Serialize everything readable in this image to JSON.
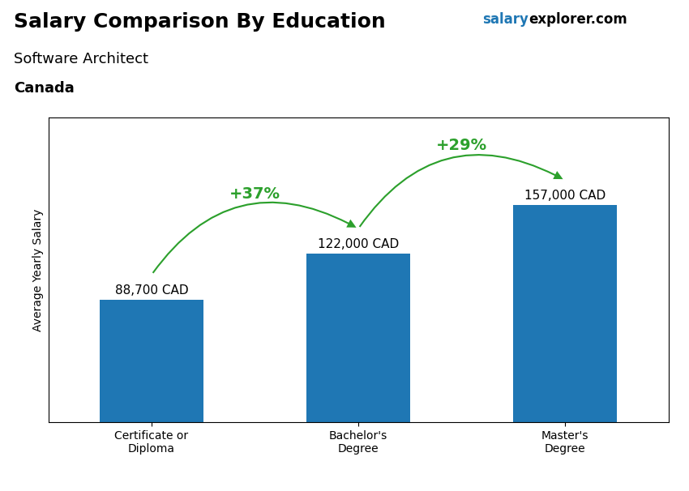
{
  "chart_data": {
    "type": "bar",
    "title": "Salary Comparison By Education",
    "subtitle": "Software Architect",
    "country": "Canada",
    "watermark": [
      "salary",
      "explorer.com"
    ],
    "y_label": "Average Yearly Salary",
    "categories": [
      "Certificate or\nDiploma",
      "Bachelor's\nDegree",
      "Master's\nDegree"
    ],
    "values": [
      88700,
      122000,
      157000
    ],
    "value_labels": [
      "88,700 CAD",
      "122,000 CAD",
      "157,000 CAD"
    ],
    "data_labels": true,
    "annotations": [
      "+37%",
      "+29%"
    ],
    "ylim": [
      0,
      220000
    ],
    "tick_labels": "x",
    "grid": false
  }
}
